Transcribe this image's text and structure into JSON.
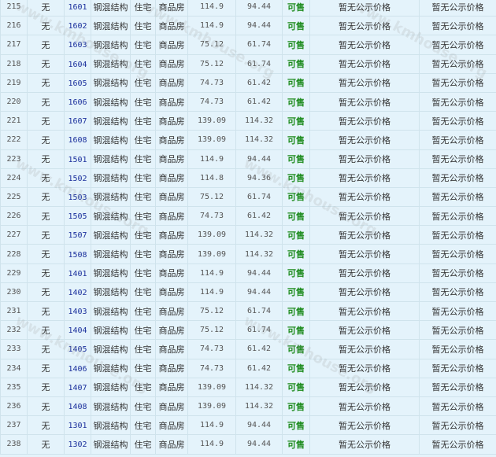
{
  "columns_static": {
    "none": "无",
    "structure": "钢混结构",
    "usage": "住宅",
    "type": "商品房",
    "status": "可售",
    "price": "暂无公示价格"
  },
  "colors": {
    "status": "#1b8a1b",
    "unit_link": "#1a2f9c",
    "background": "#e4f3fb"
  },
  "rows": [
    {
      "no": "215",
      "unit": "1601",
      "area": "114.9",
      "inner": "94.44"
    },
    {
      "no": "216",
      "unit": "1602",
      "area": "114.9",
      "inner": "94.44"
    },
    {
      "no": "217",
      "unit": "1603",
      "area": "75.12",
      "inner": "61.74"
    },
    {
      "no": "218",
      "unit": "1604",
      "area": "75.12",
      "inner": "61.74"
    },
    {
      "no": "219",
      "unit": "1605",
      "area": "74.73",
      "inner": "61.42"
    },
    {
      "no": "220",
      "unit": "1606",
      "area": "74.73",
      "inner": "61.42"
    },
    {
      "no": "221",
      "unit": "1607",
      "area": "139.09",
      "inner": "114.32"
    },
    {
      "no": "222",
      "unit": "1608",
      "area": "139.09",
      "inner": "114.32"
    },
    {
      "no": "223",
      "unit": "1501",
      "area": "114.9",
      "inner": "94.44"
    },
    {
      "no": "224",
      "unit": "1502",
      "area": "114.8",
      "inner": "94.36"
    },
    {
      "no": "225",
      "unit": "1503",
      "area": "75.12",
      "inner": "61.74"
    },
    {
      "no": "226",
      "unit": "1505",
      "area": "74.73",
      "inner": "61.42"
    },
    {
      "no": "227",
      "unit": "1507",
      "area": "139.09",
      "inner": "114.32"
    },
    {
      "no": "228",
      "unit": "1508",
      "area": "139.09",
      "inner": "114.32"
    },
    {
      "no": "229",
      "unit": "1401",
      "area": "114.9",
      "inner": "94.44"
    },
    {
      "no": "230",
      "unit": "1402",
      "area": "114.9",
      "inner": "94.44"
    },
    {
      "no": "231",
      "unit": "1403",
      "area": "75.12",
      "inner": "61.74"
    },
    {
      "no": "232",
      "unit": "1404",
      "area": "75.12",
      "inner": "61.74"
    },
    {
      "no": "233",
      "unit": "1405",
      "area": "74.73",
      "inner": "61.42"
    },
    {
      "no": "234",
      "unit": "1406",
      "area": "74.73",
      "inner": "61.42"
    },
    {
      "no": "235",
      "unit": "1407",
      "area": "139.09",
      "inner": "114.32"
    },
    {
      "no": "236",
      "unit": "1408",
      "area": "139.09",
      "inner": "114.32"
    },
    {
      "no": "237",
      "unit": "1301",
      "area": "114.9",
      "inner": "94.44"
    },
    {
      "no": "238",
      "unit": "1302",
      "area": "114.9",
      "inner": "94.44"
    }
  ]
}
